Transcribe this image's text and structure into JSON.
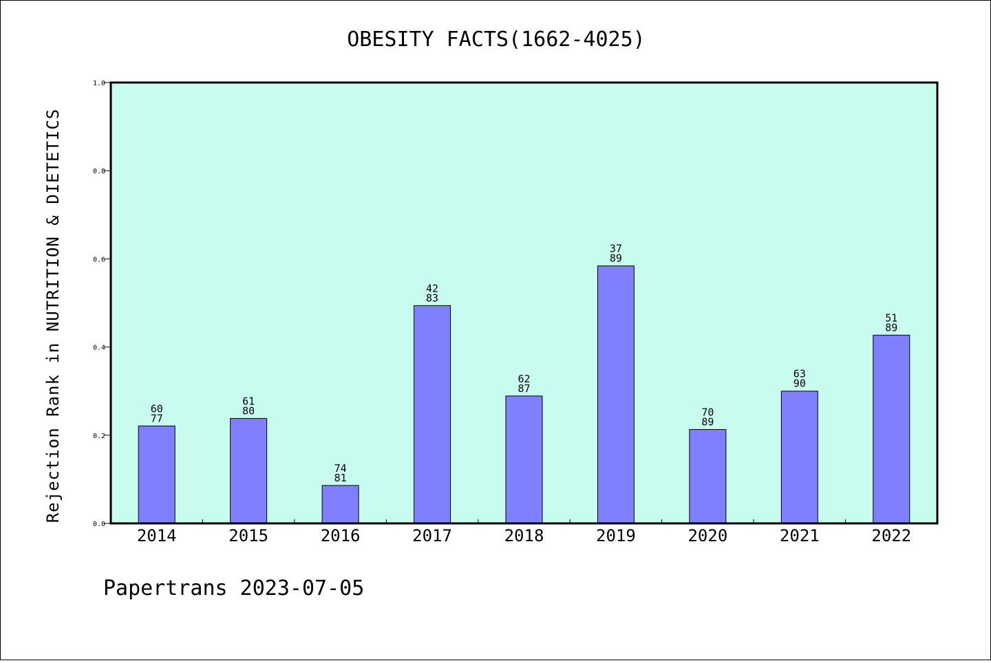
{
  "chart_data": {
    "type": "bar",
    "title": "OBESITY FACTS(1662-4025)",
    "xlabel": "",
    "ylabel": "Rejection Rank in NUTRITION & DIETETICS",
    "categories": [
      "2014",
      "2015",
      "2016",
      "2017",
      "2018",
      "2019",
      "2020",
      "2021",
      "2022"
    ],
    "values": [
      0.221,
      0.238,
      0.086,
      0.494,
      0.289,
      0.584,
      0.213,
      0.3,
      0.427
    ],
    "data_labels": [
      [
        "60",
        "77"
      ],
      [
        "61",
        "80"
      ],
      [
        "74",
        "81"
      ],
      [
        "42",
        "83"
      ],
      [
        "62",
        "87"
      ],
      [
        "37",
        "89"
      ],
      [
        "70",
        "89"
      ],
      [
        "63",
        "90"
      ],
      [
        "51",
        "89"
      ]
    ],
    "ylim": [
      0,
      1.0
    ],
    "yticks": [
      "0.0",
      "0.2",
      "0.4",
      "0.6",
      "0.8",
      "1.0"
    ],
    "grid": false,
    "colors": {
      "bar": "#8080ff",
      "plot_background": "#c8fcee",
      "axis": "#000000"
    }
  },
  "footer": {
    "text": "Papertrans 2023-07-05"
  }
}
